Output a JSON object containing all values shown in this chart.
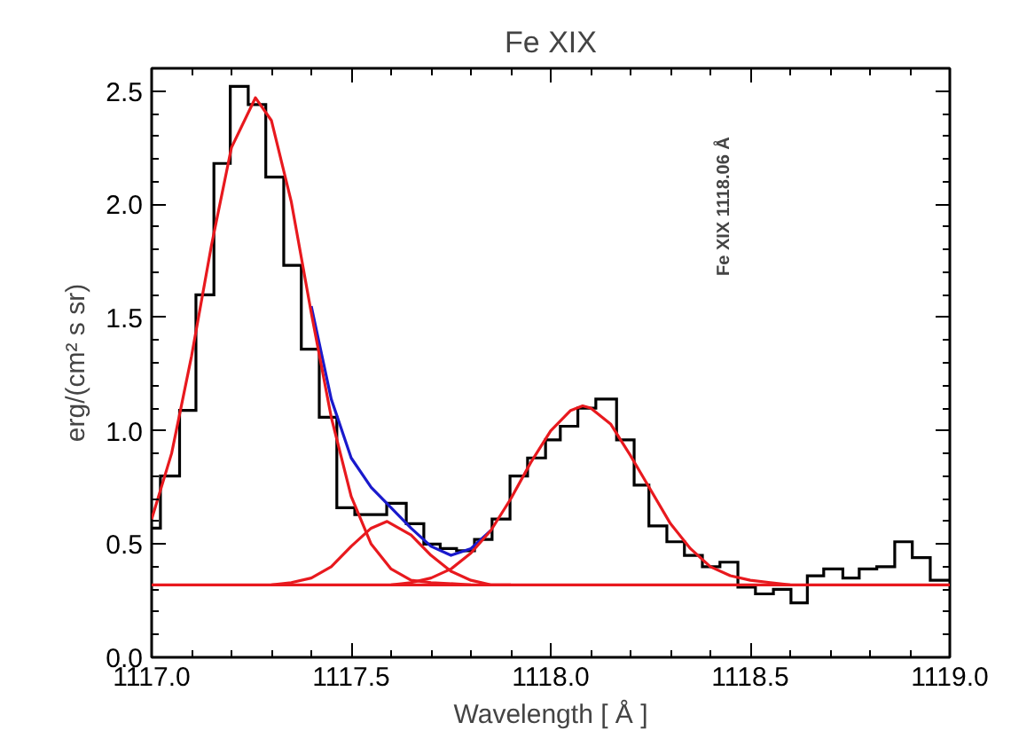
{
  "chart_data": {
    "type": "histogram",
    "title": "Fe XIX",
    "xlabel": "Wavelength [ Å ]",
    "ylabel": "erg/(cm² s sr)",
    "bins": [
      1117.0,
      1117.022,
      1117.07,
      1117.111,
      1117.156,
      1117.197,
      1117.242,
      1117.286,
      1117.331,
      1117.375,
      1117.42,
      1117.464,
      1117.509,
      1117.549,
      1117.589,
      1117.638,
      1117.682,
      1117.723,
      1117.764,
      1117.809,
      1117.853,
      1117.898,
      1117.942,
      1117.987,
      1118.024,
      1118.068,
      1118.113,
      1118.165,
      1118.209,
      1118.246,
      1118.291,
      1118.335,
      1118.38,
      1118.424,
      1118.469,
      1118.513,
      1118.558,
      1118.602,
      1118.643,
      1118.684,
      1118.732,
      1118.773,
      1118.817,
      1118.862,
      1118.906,
      1118.951,
      1119.0
    ],
    "values": [
      0.57,
      0.8,
      1.09,
      1.6,
      2.18,
      2.52,
      2.44,
      2.12,
      1.73,
      1.36,
      1.06,
      0.66,
      0.63,
      0.63,
      0.68,
      0.59,
      0.5,
      0.48,
      0.47,
      0.52,
      0.61,
      0.8,
      0.88,
      0.96,
      1.02,
      1.1,
      1.14,
      0.96,
      0.76,
      0.58,
      0.51,
      0.45,
      0.4,
      0.42,
      0.31,
      0.28,
      0.3,
      0.24,
      0.36,
      0.39,
      0.35,
      0.39,
      0.4,
      0.51,
      0.44,
      0.34
    ],
    "color": "#000000",
    "series": [
      {
        "type": "line",
        "color": "#1a1acc",
        "x": [
          1117.4,
          1117.45,
          1117.5,
          1117.55,
          1117.6,
          1117.65,
          1117.7,
          1117.75,
          1117.8,
          1117.85
        ],
        "values": [
          1.55,
          1.14,
          0.88,
          0.75,
          0.66,
          0.57,
          0.49,
          0.45,
          0.48,
          0.56
        ]
      },
      {
        "type": "line",
        "color": "#e8191e",
        "x": [
          1117.0,
          1119.0
        ],
        "values": [
          0.32,
          0.32
        ]
      },
      {
        "type": "line",
        "color": "#e8191e",
        "x": [
          1117.0,
          1117.05,
          1117.1,
          1117.15,
          1117.2,
          1117.26,
          1117.3,
          1117.35,
          1117.4,
          1117.45,
          1117.5,
          1117.55,
          1117.6,
          1117.65,
          1117.7,
          1117.8
        ],
        "values": [
          0.61,
          0.9,
          1.33,
          1.82,
          2.25,
          2.47,
          2.37,
          2.01,
          1.52,
          1.06,
          0.71,
          0.5,
          0.39,
          0.34,
          0.33,
          0.32
        ]
      },
      {
        "type": "line",
        "color": "#e8191e",
        "x": [
          1117.3,
          1117.35,
          1117.4,
          1117.45,
          1117.5,
          1117.55,
          1117.59,
          1117.65,
          1117.7,
          1117.75,
          1117.8,
          1117.85,
          1117.9
        ],
        "values": [
          0.32,
          0.33,
          0.35,
          0.4,
          0.49,
          0.57,
          0.6,
          0.54,
          0.45,
          0.38,
          0.34,
          0.32,
          0.32
        ]
      },
      {
        "type": "line",
        "color": "#e8191e",
        "x": [
          1117.6,
          1117.65,
          1117.7,
          1117.75,
          1117.8,
          1117.85,
          1117.9,
          1117.95,
          1118.0,
          1118.05,
          1118.08,
          1118.1,
          1118.15,
          1118.2,
          1118.25,
          1118.3,
          1118.35,
          1118.4,
          1118.45,
          1118.5,
          1118.55,
          1118.6
        ],
        "values": [
          0.32,
          0.33,
          0.35,
          0.39,
          0.46,
          0.56,
          0.7,
          0.86,
          1.0,
          1.09,
          1.11,
          1.1,
          1.03,
          0.89,
          0.74,
          0.59,
          0.48,
          0.4,
          0.36,
          0.34,
          0.33,
          0.32
        ]
      }
    ],
    "annotations": [
      "Fe XIX 1118.06 Å"
    ],
    "xlim": [
      1117.0,
      1119.0
    ],
    "xticks": [
      {
        "value": 1117.0,
        "label": "1117.0"
      },
      {
        "value": 1117.5,
        "label": "1117.5"
      },
      {
        "value": 1118.0,
        "label": "1118.0"
      },
      {
        "value": 1118.5,
        "label": "1118.5"
      },
      {
        "value": 1119.0,
        "label": "1119.0"
      }
    ],
    "ylim": [
      0.0,
      2.6
    ],
    "yticks": [
      {
        "value": 0.0,
        "label": "0.0"
      },
      {
        "value": 0.5,
        "label": "0.5"
      },
      {
        "value": 1.0,
        "label": "1.0"
      },
      {
        "value": 1.5,
        "label": "1.5"
      },
      {
        "value": 2.0,
        "label": "2.0"
      },
      {
        "value": 2.5,
        "label": "2.5"
      }
    ],
    "grid": false
  }
}
